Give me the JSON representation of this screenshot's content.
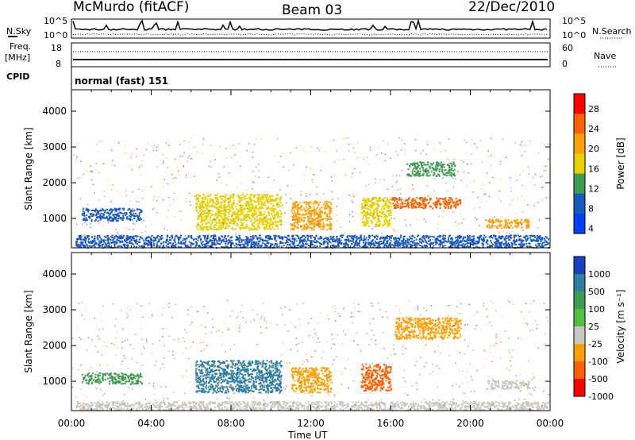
{
  "header": {
    "station": "McMurdo (fitACF)",
    "beam": "Beam 03",
    "date": "22/Dec/2010"
  },
  "strip1": {
    "left_label": "N.Sky",
    "right_label": "N.Search",
    "left_ticks": [
      "10^5",
      "10^0"
    ],
    "right_ticks": [
      "10^5",
      "10^0"
    ]
  },
  "strip2": {
    "left_label_1": "Freq.",
    "left_label_2": "[MHz]",
    "right_label": "Nave",
    "left_ticks": [
      "18",
      "8"
    ],
    "right_ticks": [
      "60",
      "0"
    ]
  },
  "cpid": {
    "label": "CPID",
    "mode": "normal (fast) 151"
  },
  "chart_data": [
    {
      "type": "heatmap",
      "title": "",
      "quantity": "Power",
      "xlabel": "",
      "ylabel": "Slant Range [km]",
      "colorbar_label": "Power [dB]",
      "colorbar_ticks": [
        "28",
        "24",
        "20",
        "16",
        "12",
        "8",
        "4"
      ],
      "colorbar_colors": [
        "#ff0000",
        "#ff6000",
        "#ffa000",
        "#e8d000",
        "#3e9a50",
        "#1858c0",
        "#0040ff"
      ],
      "ylim": [
        180,
        4600
      ],
      "yticks": [
        1000,
        2000,
        3000,
        4000
      ],
      "xlim": [
        0,
        24
      ],
      "regions": [
        {
          "t0": 0.2,
          "t1": 23.9,
          "r0": 200,
          "r1": 550,
          "level": 8
        },
        {
          "t0": 0.5,
          "t1": 3.5,
          "r0": 950,
          "r1": 1300,
          "level": 8
        },
        {
          "t0": 6.2,
          "t1": 10.5,
          "r0": 700,
          "r1": 1700,
          "level": 16
        },
        {
          "t0": 11.0,
          "t1": 13.0,
          "r0": 700,
          "r1": 1500,
          "level": 20
        },
        {
          "t0": 14.5,
          "t1": 16.0,
          "r0": 800,
          "r1": 1600,
          "level": 16
        },
        {
          "t0": 16.0,
          "t1": 19.5,
          "r0": 1300,
          "r1": 1600,
          "level": 24
        },
        {
          "t0": 16.8,
          "t1": 19.2,
          "r0": 2200,
          "r1": 2600,
          "level": 12
        },
        {
          "t0": 20.8,
          "t1": 23.0,
          "r0": 750,
          "r1": 1000,
          "level": 20
        }
      ]
    },
    {
      "type": "heatmap",
      "title": "",
      "quantity": "Velocity",
      "xlabel": "Time UT",
      "ylabel": "Slant Range [km]",
      "colorbar_label": "Velocity [m s^-1]",
      "colorbar_ticks": [
        "1000",
        "500",
        "100",
        "25",
        "-25",
        "-100",
        "-500",
        "-1000"
      ],
      "colorbar_colors": [
        "#1840c0",
        "#2e7fa0",
        "#3e9a50",
        "#4cc040",
        "#c8c8c0",
        "#ffa000",
        "#ff6000",
        "#ff0000"
      ],
      "ylim": [
        180,
        4600
      ],
      "yticks": [
        1000,
        2000,
        3000,
        4000
      ],
      "xlim": [
        0,
        24
      ],
      "xticks": [
        "00:00",
        "04:00",
        "08:00",
        "12:00",
        "16:00",
        "20:00",
        "00:00"
      ],
      "regions": [
        {
          "t0": 0.2,
          "t1": 23.9,
          "r0": 200,
          "r1": 450,
          "level": -25
        },
        {
          "t0": 0.5,
          "t1": 3.5,
          "r0": 950,
          "r1": 1250,
          "level": 100
        },
        {
          "t0": 6.2,
          "t1": 10.5,
          "r0": 700,
          "r1": 1600,
          "level": 500
        },
        {
          "t0": 11.0,
          "t1": 13.0,
          "r0": 700,
          "r1": 1400,
          "level": -100
        },
        {
          "t0": 14.5,
          "t1": 16.0,
          "r0": 750,
          "r1": 1500,
          "level": -500
        },
        {
          "t0": 16.2,
          "t1": 19.5,
          "r0": 2200,
          "r1": 2800,
          "level": -100
        },
        {
          "t0": 20.8,
          "t1": 23.0,
          "r0": 800,
          "r1": 1050,
          "level": -25
        }
      ]
    }
  ]
}
